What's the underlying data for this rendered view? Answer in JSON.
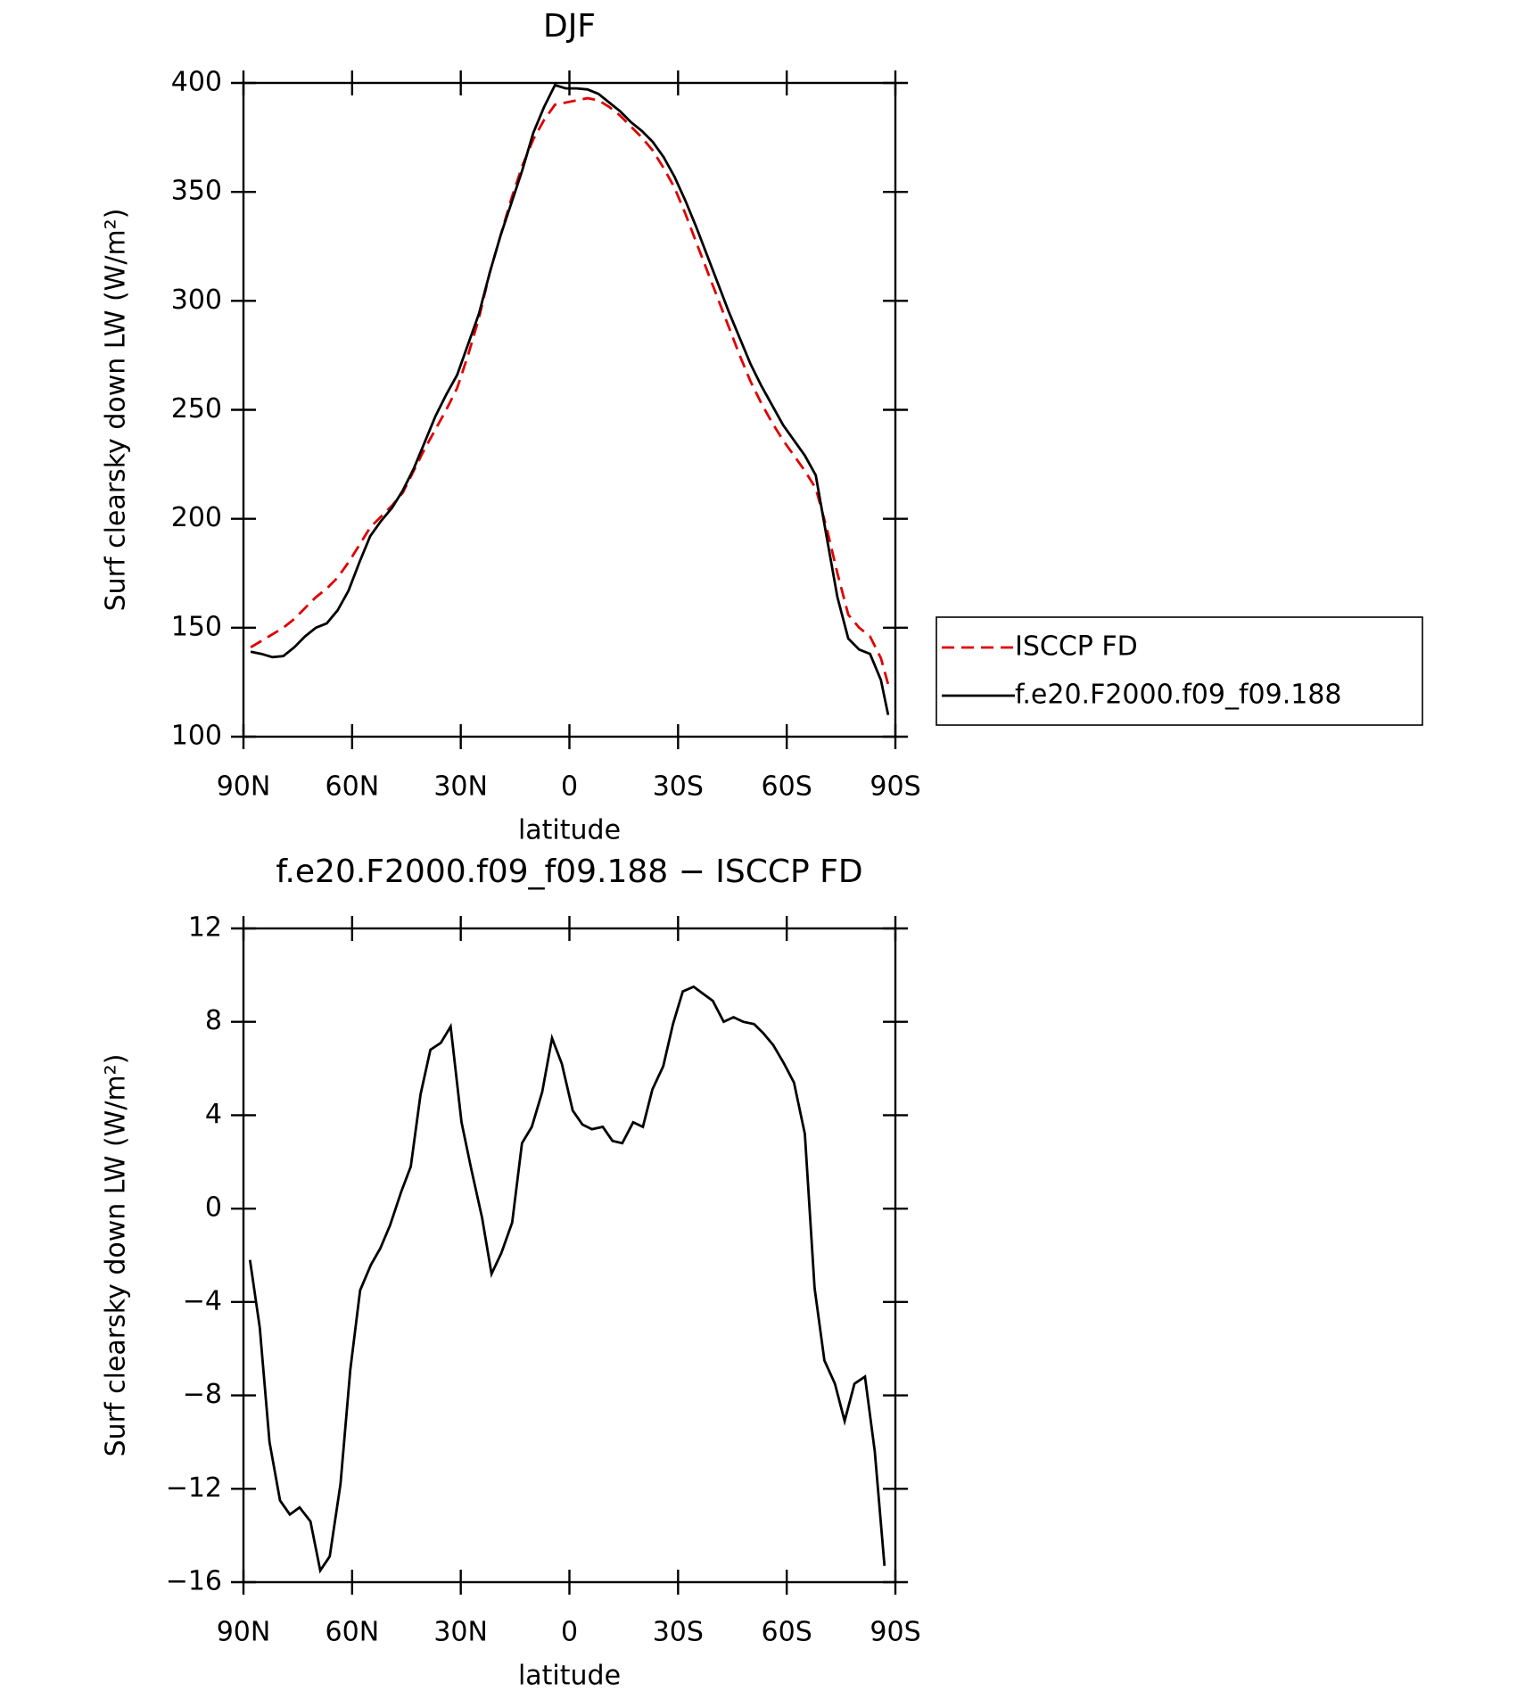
{
  "chart_data": [
    {
      "type": "line",
      "title": "DJF",
      "xlabel": "latitude",
      "ylabel": "Surf clearsky down LW (W/m²)",
      "xlim": [
        90,
        -90
      ],
      "xticks": [
        {
          "value": 90,
          "label": "90N"
        },
        {
          "value": 60,
          "label": "60N"
        },
        {
          "value": 30,
          "label": "30N"
        },
        0,
        {
          "value": -30,
          "label": "30S"
        },
        {
          "value": -60,
          "label": "60S"
        },
        {
          "value": -90,
          "label": "90S"
        }
      ],
      "ylim": [
        100,
        400
      ],
      "yticks": [
        100,
        150,
        200,
        250,
        300,
        350,
        400
      ],
      "legend": "right",
      "series": [
        {
          "name": "ISCCP FD",
          "color": "#e00000",
          "linestyle": "dashed",
          "x": [
            88,
            85,
            82,
            79,
            76,
            73,
            70,
            67,
            64,
            61,
            58,
            55,
            52,
            49,
            46,
            43,
            40,
            37,
            34,
            31,
            28,
            25,
            22,
            19,
            16,
            13,
            10,
            7,
            4,
            1,
            -2,
            -5,
            -8,
            -11,
            -14,
            -17,
            -20,
            -23,
            -26,
            -29,
            -32,
            -35,
            -38,
            -41,
            -44,
            -47,
            -50,
            -53,
            -56,
            -59,
            -62,
            -65,
            -68,
            -71,
            -74,
            -77,
            -80,
            -83,
            -86,
            -88
          ],
          "values": [
            141,
            144,
            147,
            150,
            154,
            159,
            164,
            168,
            173,
            180,
            188,
            196,
            201,
            206,
            212,
            222,
            232,
            241,
            250,
            260,
            275,
            292,
            313,
            330,
            347,
            362,
            374,
            383,
            390,
            391,
            392,
            393,
            392,
            389,
            385,
            380,
            375,
            369,
            361,
            352,
            340,
            327,
            314,
            301,
            288,
            275,
            263,
            253,
            244,
            236,
            229,
            222,
            214,
            196,
            175,
            156,
            150,
            146,
            136,
            124
          ]
        },
        {
          "name": "f.e20.F2000.f09_f09.188",
          "color": "#000000",
          "linestyle": "solid",
          "x": [
            88,
            85,
            82,
            79,
            76,
            73,
            70,
            67,
            64,
            61,
            58,
            55,
            52,
            49,
            46,
            43,
            40,
            37,
            34,
            31,
            28,
            25,
            22,
            19,
            16,
            13,
            10,
            7,
            4,
            1,
            -2,
            -5,
            -8,
            -11,
            -14,
            -17,
            -20,
            -23,
            -26,
            -29,
            -32,
            -35,
            -38,
            -41,
            -44,
            -47,
            -50,
            -53,
            -56,
            -59,
            -62,
            -65,
            -68,
            -71,
            -74,
            -77,
            -80,
            -83,
            -86,
            -88
          ],
          "values": [
            139,
            138,
            136.5,
            137,
            141,
            146,
            150,
            152,
            158,
            167,
            180,
            192,
            199,
            205,
            213,
            223,
            235,
            247,
            257,
            266,
            280,
            294,
            313,
            330,
            345,
            360,
            377,
            389,
            399,
            397.5,
            397.5,
            397,
            395,
            391,
            387,
            382,
            378,
            373,
            366,
            357,
            346,
            334,
            321,
            308,
            295,
            283,
            271,
            261,
            252,
            243,
            236,
            229,
            220,
            192,
            164,
            145,
            140,
            138,
            126,
            110
          ]
        }
      ]
    },
    {
      "type": "line",
      "title": "f.e20.F2000.f09_f09.188 − ISCCP FD",
      "xlabel": "latitude",
      "ylabel": "Surf clearsky down LW (W/m²)",
      "xlim": [
        90,
        -90
      ],
      "xticks": [
        {
          "value": 90,
          "label": "90N"
        },
        {
          "value": 60,
          "label": "60N"
        },
        {
          "value": 30,
          "label": "30N"
        },
        0,
        {
          "value": -30,
          "label": "30S"
        },
        {
          "value": -60,
          "label": "60S"
        },
        {
          "value": -90,
          "label": "90S"
        }
      ],
      "ylim": [
        -16,
        12
      ],
      "yticks": [
        {
          "value": -16,
          "label": "−16"
        },
        {
          "value": -12,
          "label": "−12"
        },
        {
          "value": -8,
          "label": "−8"
        },
        {
          "value": -4,
          "label": "−4"
        },
        0,
        4,
        8,
        12
      ],
      "series": [
        {
          "color": "#000000",
          "linestyle": "solid",
          "x": [
            88.2,
            85.5,
            82.8,
            79.9,
            77.2,
            74.5,
            71.5,
            68.8,
            66.2,
            63.2,
            60.5,
            57.8,
            54.8,
            52.2,
            49.5,
            46.5,
            43.8,
            41.1,
            38.4,
            35.5,
            32.8,
            29.8,
            27.1,
            24.1,
            21.5,
            18.8,
            15.8,
            13.1,
            10.4,
            7.5,
            4.8,
            2.1,
            -0.9,
            -3.6,
            -6.2,
            -9.2,
            -11.9,
            -14.6,
            -17.6,
            -20.3,
            -22.9,
            -25.9,
            -28.6,
            -31.3,
            -34.3,
            -36.9,
            -39.6,
            -42.6,
            -45.3,
            -48,
            -51,
            -53.6,
            -56.3,
            -59.3,
            -62,
            -65,
            -67.7,
            -70.4,
            -73.3,
            -76,
            -78.7,
            -81.6,
            -84.3,
            -87
          ],
          "values": [
            -2.2,
            -5.1,
            -10,
            -12.5,
            -13.1,
            -12.8,
            -13.4,
            -15.5,
            -14.9,
            -11.8,
            -6.9,
            -3.5,
            -2.4,
            -1.7,
            -0.7,
            0.7,
            1.8,
            4.9,
            6.8,
            7.1,
            7.8,
            3.7,
            1.7,
            -0.4,
            -2.8,
            -1.9,
            -0.6,
            2.8,
            3.5,
            5.0,
            7.3,
            6.2,
            4.2,
            3.6,
            3.4,
            3.5,
            2.9,
            2.8,
            3.7,
            3.5,
            5.1,
            6.1,
            7.9,
            9.3,
            9.5,
            9.2,
            8.9,
            8.0,
            8.2,
            8.0,
            7.9,
            7.5,
            7.0,
            6.2,
            5.4,
            3.2,
            -3.4,
            -6.5,
            -7.5,
            -9.1,
            -7.5,
            -7.2,
            -10.4,
            -15.3
          ]
        }
      ]
    }
  ]
}
